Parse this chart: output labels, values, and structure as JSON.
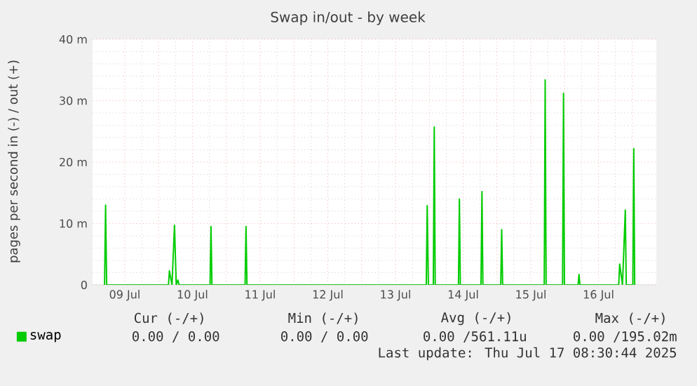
{
  "chart_data": {
    "type": "line",
    "title": "Swap in/out - by week",
    "ylabel": "pages per second in (-) / out (+)",
    "x": [
      "2025-07-09T04:50",
      "2025-07-09T05:12",
      "2025-07-09T05:35",
      "2025-07-10T03:30",
      "2025-07-10T03:50",
      "2025-07-10T04:45",
      "2025-07-10T05:38",
      "2025-07-10T06:15",
      "2025-07-10T06:50",
      "2025-07-10T07:15",
      "2025-07-10T18:15",
      "2025-07-10T18:35",
      "2025-07-10T18:55",
      "2025-07-11T06:40",
      "2025-07-11T07:00",
      "2025-07-11T07:20",
      "2025-07-13T22:55",
      "2025-07-13T23:15",
      "2025-07-13T23:40",
      "2025-07-14T01:25",
      "2025-07-14T01:45",
      "2025-07-14T02:05",
      "2025-07-14T10:20",
      "2025-07-14T10:40",
      "2025-07-14T11:00",
      "2025-07-14T18:20",
      "2025-07-14T18:40",
      "2025-07-14T19:00",
      "2025-07-15T01:20",
      "2025-07-15T01:40",
      "2025-07-15T02:00",
      "2025-07-15T16:45",
      "2025-07-15T17:05",
      "2025-07-15T17:25",
      "2025-07-15T23:15",
      "2025-07-15T23:35",
      "2025-07-15T23:55",
      "2025-07-16T04:45",
      "2025-07-16T05:05",
      "2025-07-16T05:25",
      "2025-07-16T19:10",
      "2025-07-16T19:30",
      "2025-07-16T20:30",
      "2025-07-16T21:30",
      "2025-07-16T21:50",
      "2025-07-17T00:10",
      "2025-07-17T00:30",
      "2025-07-17T00:50"
    ],
    "series": [
      {
        "name": "swap",
        "color": "#00cc00",
        "values": [
          0,
          13,
          0,
          0,
          2.3,
          0,
          9.7,
          0,
          0.8,
          0,
          0,
          9.5,
          0,
          0,
          9.5,
          0,
          0,
          12.9,
          0,
          0,
          25.7,
          0,
          0,
          14,
          0,
          0,
          15.2,
          0,
          0,
          9,
          0,
          0,
          33.4,
          0,
          0,
          31.2,
          0,
          0,
          1.7,
          0,
          0,
          3.4,
          0,
          12.2,
          0,
          0,
          22.2,
          0
        ]
      }
    ],
    "xlim": [
      "2025-07-09T00:35",
      "2025-07-17T08:30"
    ],
    "xticks": [
      {
        "value": "2025-07-09T12:00",
        "label": "09 Jul"
      },
      {
        "value": "2025-07-10T00:00",
        "label": null
      },
      {
        "value": "2025-07-10T12:00",
        "label": "10 Jul"
      },
      {
        "value": "2025-07-11T00:00",
        "label": null
      },
      {
        "value": "2025-07-11T12:00",
        "label": "11 Jul"
      },
      {
        "value": "2025-07-12T00:00",
        "label": null
      },
      {
        "value": "2025-07-12T12:00",
        "label": "12 Jul"
      },
      {
        "value": "2025-07-13T00:00",
        "label": null
      },
      {
        "value": "2025-07-13T12:00",
        "label": "13 Jul"
      },
      {
        "value": "2025-07-14T00:00",
        "label": null
      },
      {
        "value": "2025-07-14T12:00",
        "label": "14 Jul"
      },
      {
        "value": "2025-07-15T00:00",
        "label": null
      },
      {
        "value": "2025-07-15T12:00",
        "label": "15 Jul"
      },
      {
        "value": "2025-07-16T00:00",
        "label": null
      },
      {
        "value": "2025-07-16T12:00",
        "label": "16 Jul"
      },
      {
        "value": "2025-07-17T00:00",
        "label": null
      }
    ],
    "ylim": [
      0,
      40
    ],
    "yticks": [
      {
        "value": 0,
        "label": "0"
      },
      {
        "value": 10,
        "label": "10 m"
      },
      {
        "value": 20,
        "label": "20 m"
      },
      {
        "value": 30,
        "label": "30 m"
      },
      {
        "value": 40,
        "label": "40 m"
      }
    ],
    "grid": true,
    "legend": "bottom left",
    "marker": "none",
    "line_style": "solid",
    "annotations": [
      "Cur (-/+)",
      "Min (-/+)",
      "Avg (-/+)",
      "Max (-/+)",
      "0.00 / 0.00",
      "0.00 / 0.00",
      "0.00 /561.11u",
      "0.00 /195.02m",
      "Last update: Thu Jul 17 08:30:44 2025"
    ]
  }
}
